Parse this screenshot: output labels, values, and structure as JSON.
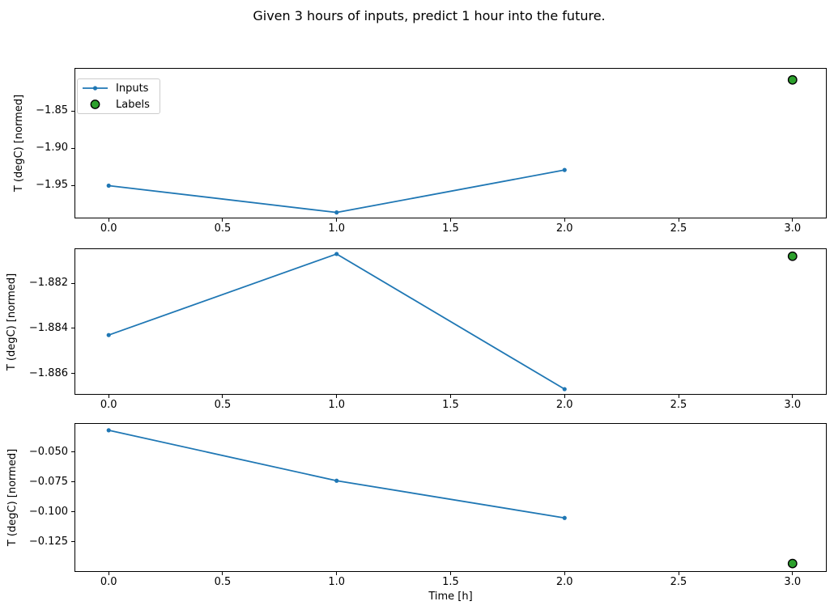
{
  "figure": {
    "title": "Given 3 hours of inputs, predict 1 hour into the future.",
    "xlabel": "Time [h]"
  },
  "colors": {
    "inputs_line": "#1f77b4",
    "labels_fill": "#2ca02c",
    "labels_edge": "#000000",
    "spine": "#000000",
    "background": "#ffffff",
    "text": "#000000"
  },
  "legend": {
    "position": "upper-left",
    "items": [
      {
        "label": "Inputs",
        "marker": "line-dot",
        "color": "#1f77b4"
      },
      {
        "label": "Labels",
        "marker": "circle",
        "fill": "#2ca02c",
        "edge": "#000000"
      }
    ]
  },
  "chart_data": [
    {
      "type": "line",
      "ylabel": "T (degC) [normed]",
      "x": [
        0.0,
        1.0,
        2.0
      ],
      "series": [
        {
          "name": "Inputs",
          "values": [
            -1.95,
            -1.986,
            -1.929
          ]
        }
      ],
      "labels_point": {
        "x": 3.0,
        "y": -1.808,
        "name": "Labels"
      },
      "xlim": [
        -0.15,
        3.15
      ],
      "ylim": [
        -1.994,
        -1.792
      ],
      "yticks": [
        {
          "value": -1.85,
          "label": "−1.85"
        },
        {
          "value": -1.9,
          "label": "−1.90"
        },
        {
          "value": -1.95,
          "label": "−1.95"
        }
      ],
      "xticks": [
        {
          "value": 0.0,
          "label": "0.0"
        },
        {
          "value": 0.5,
          "label": "0.5"
        },
        {
          "value": 1.0,
          "label": "1.0"
        },
        {
          "value": 1.5,
          "label": "1.5"
        },
        {
          "value": 2.0,
          "label": "2.0"
        },
        {
          "value": 2.5,
          "label": "2.5"
        },
        {
          "value": 3.0,
          "label": "3.0"
        }
      ],
      "grid": false,
      "show_legend": true
    },
    {
      "type": "line",
      "ylabel": "T (degC) [normed]",
      "x": [
        0.0,
        1.0,
        2.0
      ],
      "series": [
        {
          "name": "Inputs",
          "values": [
            -1.8843,
            -1.8807,
            -1.8867
          ]
        }
      ],
      "labels_point": {
        "x": 3.0,
        "y": -1.8808,
        "name": "Labels"
      },
      "xlim": [
        -0.15,
        3.15
      ],
      "ylim": [
        -1.88695,
        -1.88045
      ],
      "yticks": [
        {
          "value": -1.882,
          "label": "−1.882"
        },
        {
          "value": -1.884,
          "label": "−1.884"
        },
        {
          "value": -1.886,
          "label": "−1.886"
        }
      ],
      "xticks": [
        {
          "value": 0.0,
          "label": "0.0"
        },
        {
          "value": 0.5,
          "label": "0.5"
        },
        {
          "value": 1.0,
          "label": "1.0"
        },
        {
          "value": 1.5,
          "label": "1.5"
        },
        {
          "value": 2.0,
          "label": "2.0"
        },
        {
          "value": 2.5,
          "label": "2.5"
        },
        {
          "value": 3.0,
          "label": "3.0"
        }
      ],
      "grid": false,
      "show_legend": false
    },
    {
      "type": "line",
      "ylabel": "T (degC) [normed]",
      "xlabel": "Time [h]",
      "x": [
        0.0,
        1.0,
        2.0
      ],
      "series": [
        {
          "name": "Inputs",
          "values": [
            -0.032,
            -0.074,
            -0.105
          ]
        }
      ],
      "labels_point": {
        "x": 3.0,
        "y": -0.143,
        "name": "Labels"
      },
      "xlim": [
        -0.15,
        3.15
      ],
      "ylim": [
        -0.15,
        -0.026
      ],
      "yticks": [
        {
          "value": -0.05,
          "label": "−0.050"
        },
        {
          "value": -0.075,
          "label": "−0.075"
        },
        {
          "value": -0.1,
          "label": "−0.100"
        },
        {
          "value": -0.125,
          "label": "−0.125"
        }
      ],
      "xticks": [
        {
          "value": 0.0,
          "label": "0.0"
        },
        {
          "value": 0.5,
          "label": "0.5"
        },
        {
          "value": 1.0,
          "label": "1.0"
        },
        {
          "value": 1.5,
          "label": "1.5"
        },
        {
          "value": 2.0,
          "label": "2.0"
        },
        {
          "value": 2.5,
          "label": "2.5"
        },
        {
          "value": 3.0,
          "label": "3.0"
        }
      ],
      "grid": false,
      "show_legend": false
    }
  ]
}
